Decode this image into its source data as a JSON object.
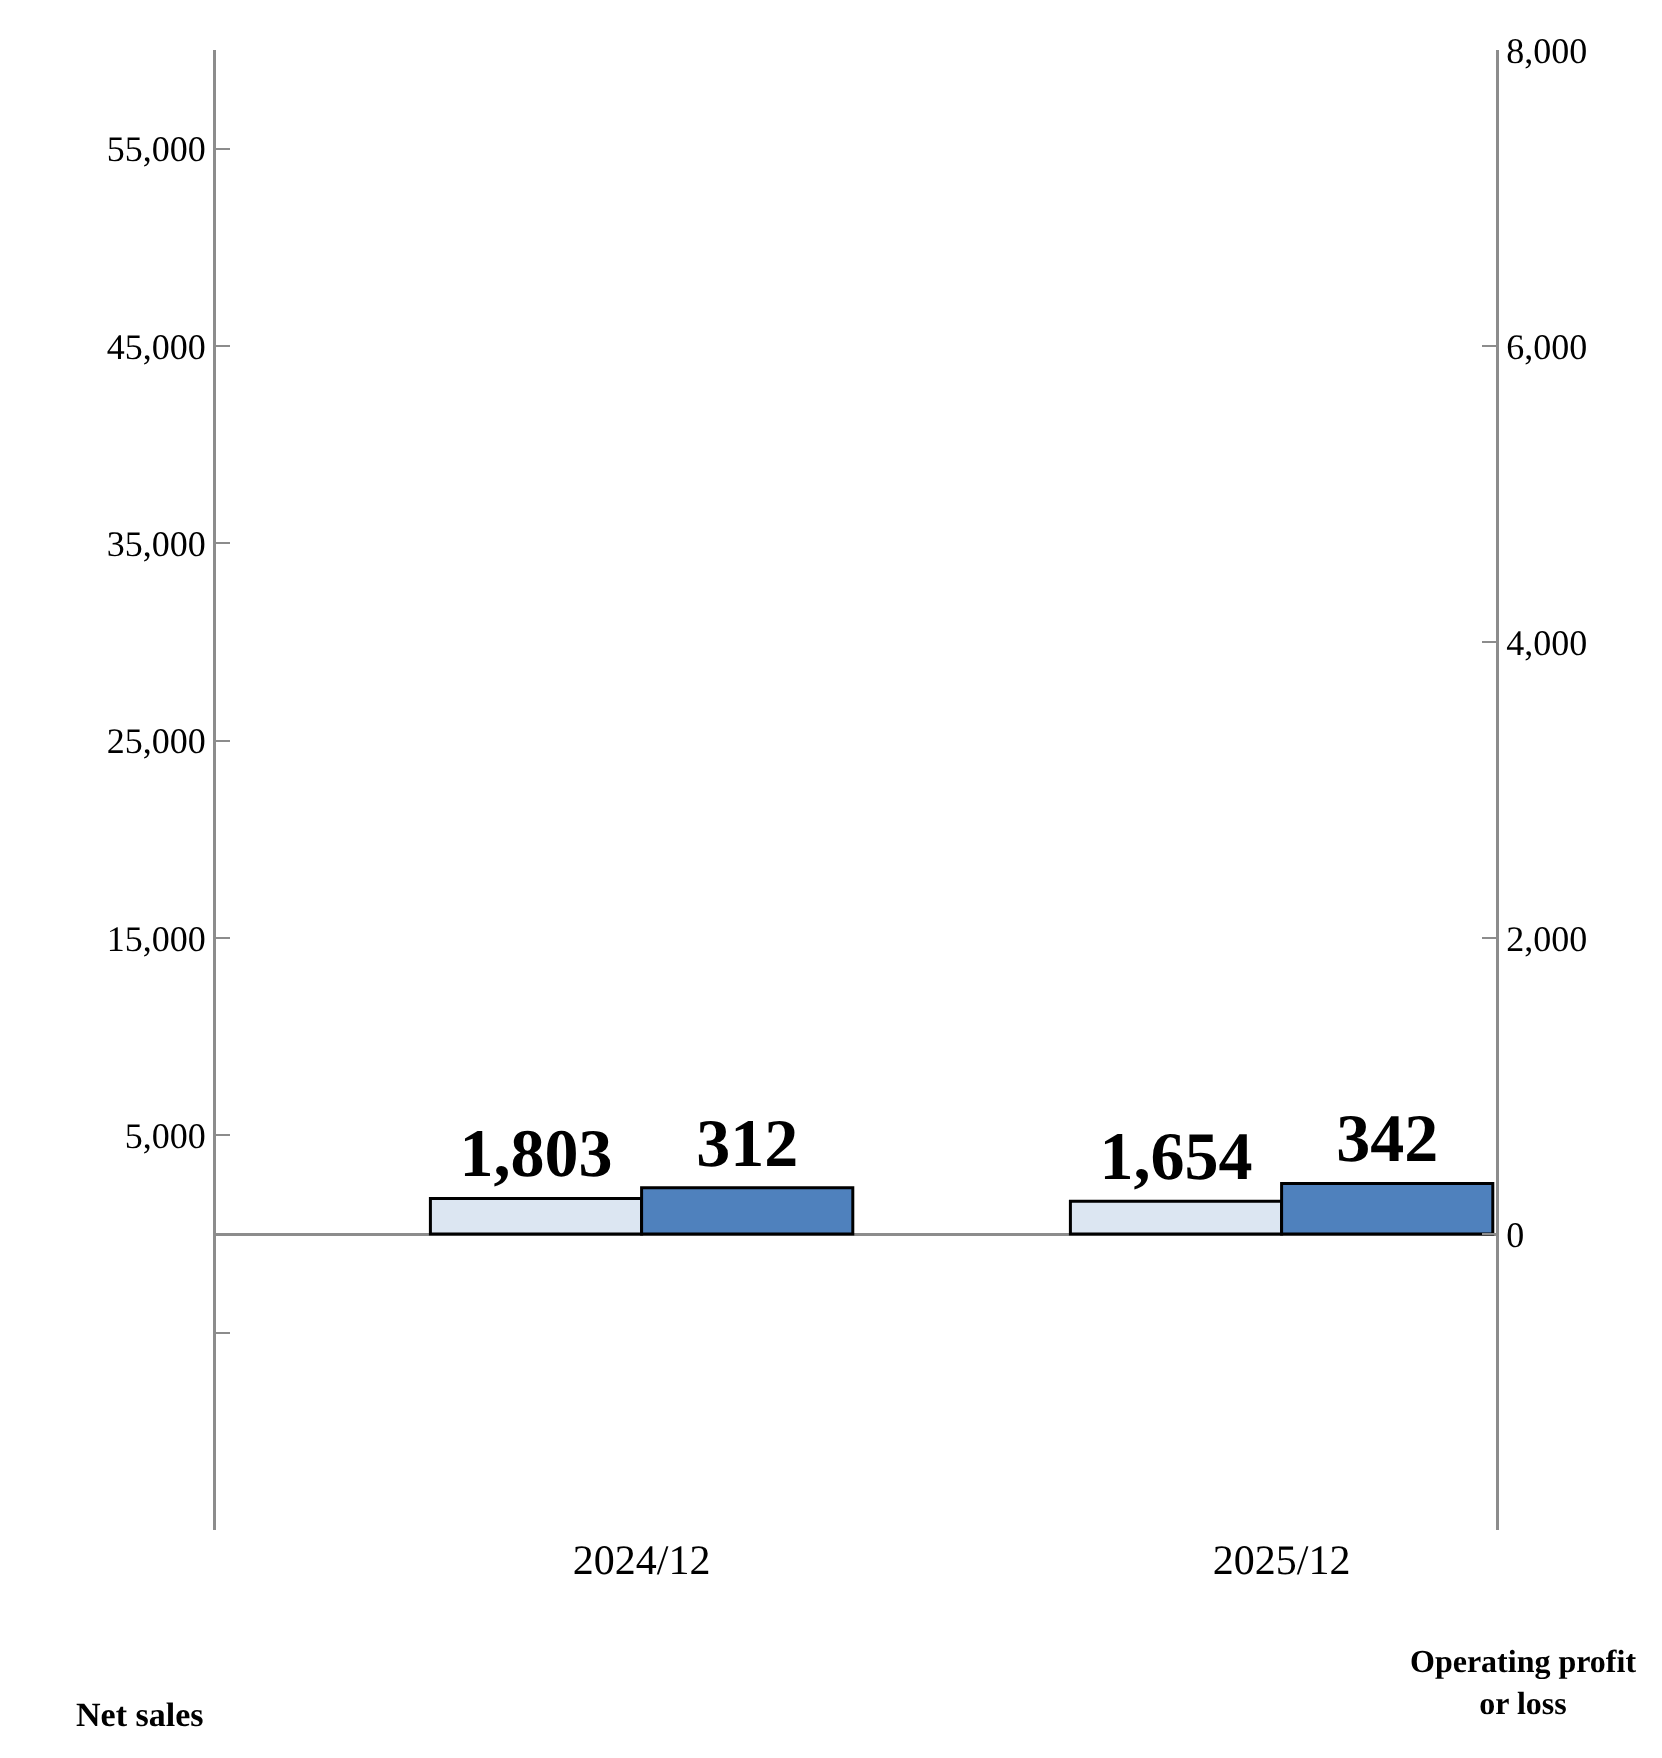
{
  "chart_data": {
    "type": "bar",
    "categories": [
      "2024/12",
      "2025/12"
    ],
    "series": [
      {
        "color": "#dce6f2",
        "values": [
          1803,
          1654
        ],
        "value_labels": [
          "1,803",
          "1,654"
        ]
      },
      {
        "color": "#4f81bd",
        "values": [
          312,
          342
        ],
        "axis": "y2",
        "value_labels": [
          "312",
          "342"
        ]
      }
    ],
    "ylabel": "Net sales",
    "y2label": "Operating profit or loss",
    "ylim": [
      -15000,
      60000
    ],
    "yticks": [
      {
        "value": -5000,
        "label": null
      },
      {
        "value": 5000,
        "label": "5,000"
      },
      {
        "value": 15000,
        "label": "15,000"
      },
      {
        "value": 25000,
        "label": "25,000"
      },
      {
        "value": 35000,
        "label": "35,000"
      },
      {
        "value": 45000,
        "label": "45,000"
      },
      {
        "value": 55000,
        "label": "55,000"
      }
    ],
    "y2lim": [
      -2000,
      8000
    ],
    "y2ticks": [
      0,
      {
        "value": 2000,
        "label": "2,000"
      },
      {
        "value": 4000,
        "label": "4,000"
      },
      {
        "value": 6000,
        "label": "6,000"
      },
      {
        "value": 8000,
        "label": "8,000"
      }
    ]
  }
}
